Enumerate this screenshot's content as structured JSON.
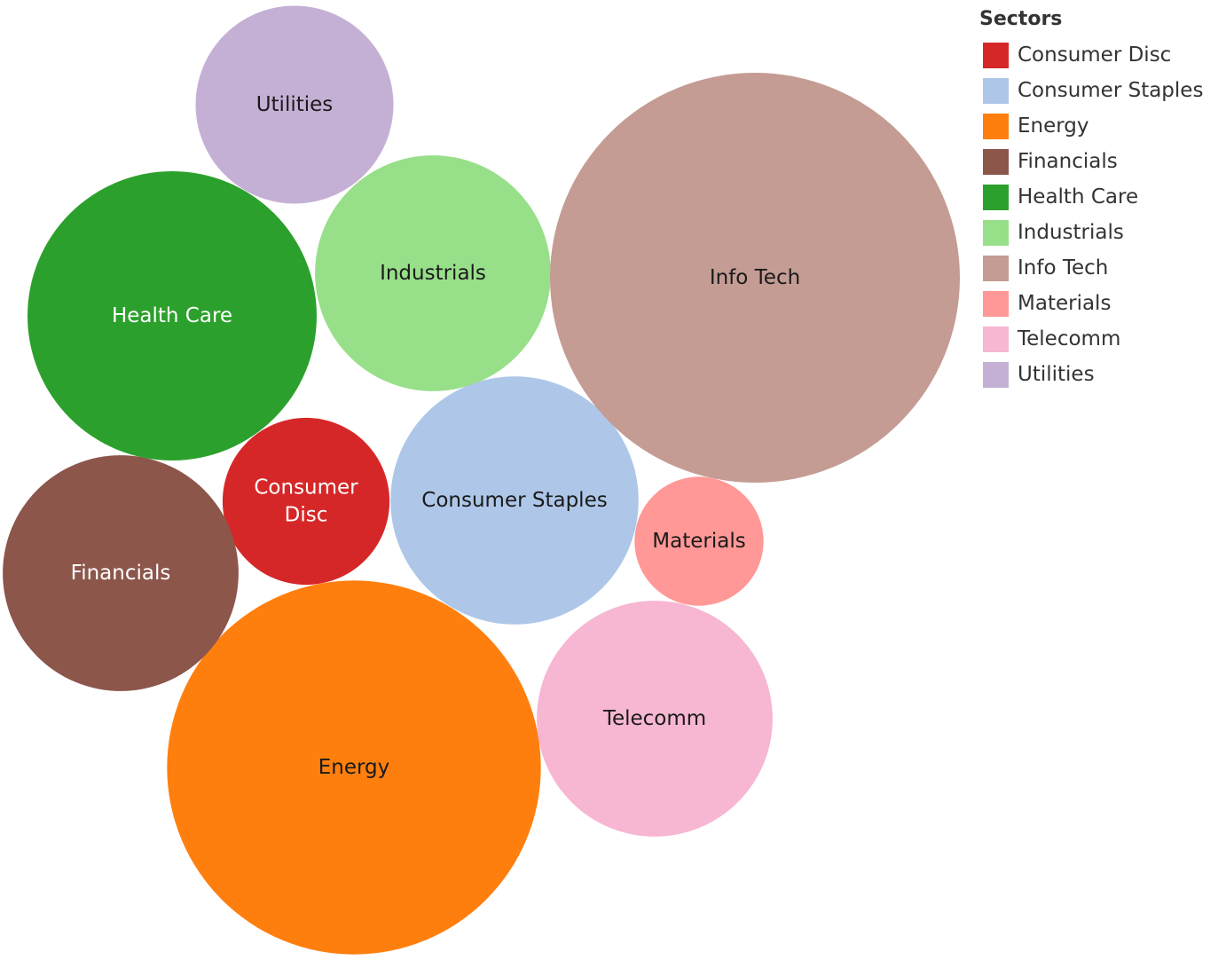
{
  "chart_data": {
    "type": "bubble",
    "title": "",
    "legend": {
      "title": "Sectors",
      "placement": "top-right"
    },
    "series": [
      {
        "name": "Consumer Disc",
        "color": "#d62728",
        "text_color": "#ffffff",
        "label_lines": [
          "Consumer",
          "Disc"
        ]
      },
      {
        "name": "Consumer Staples",
        "color": "#aec7e8",
        "text_color": "#1a1a1a",
        "label_lines": [
          "Consumer Staples"
        ]
      },
      {
        "name": "Energy",
        "color": "#ff7f0e",
        "text_color": "#1a1a1a",
        "label_lines": [
          "Energy"
        ]
      },
      {
        "name": "Financials",
        "color": "#8c564b",
        "text_color": "#ffffff",
        "label_lines": [
          "Financials"
        ]
      },
      {
        "name": "Health Care",
        "color": "#2ca02c",
        "text_color": "#ffffff",
        "label_lines": [
          "Health Care"
        ]
      },
      {
        "name": "Industrials",
        "color": "#98df8a",
        "text_color": "#1a1a1a",
        "label_lines": [
          "Industrials"
        ]
      },
      {
        "name": "Info Tech",
        "color": "#c49c94",
        "text_color": "#1a1a1a",
        "label_lines": [
          "Info Tech"
        ]
      },
      {
        "name": "Materials",
        "color": "#ff9896",
        "text_color": "#1a1a1a",
        "label_lines": [
          "Materials"
        ]
      },
      {
        "name": "Telecomm",
        "color": "#f7b6d2",
        "text_color": "#1a1a1a",
        "label_lines": [
          "Telecomm"
        ]
      },
      {
        "name": "Utilities",
        "color": "#c5b0d5",
        "text_color": "#1a1a1a",
        "label_lines": [
          "Utilities"
        ]
      }
    ],
    "relative_size": {
      "Consumer Disc": 0.166,
      "Consumer Staples": 0.366,
      "Energy": 0.832,
      "Financials": 0.331,
      "Health Care": 0.498,
      "Industrials": 0.331,
      "Info Tech": 1.0,
      "Materials": 0.099,
      "Telecomm": 0.331,
      "Utilities": 0.233
    }
  }
}
